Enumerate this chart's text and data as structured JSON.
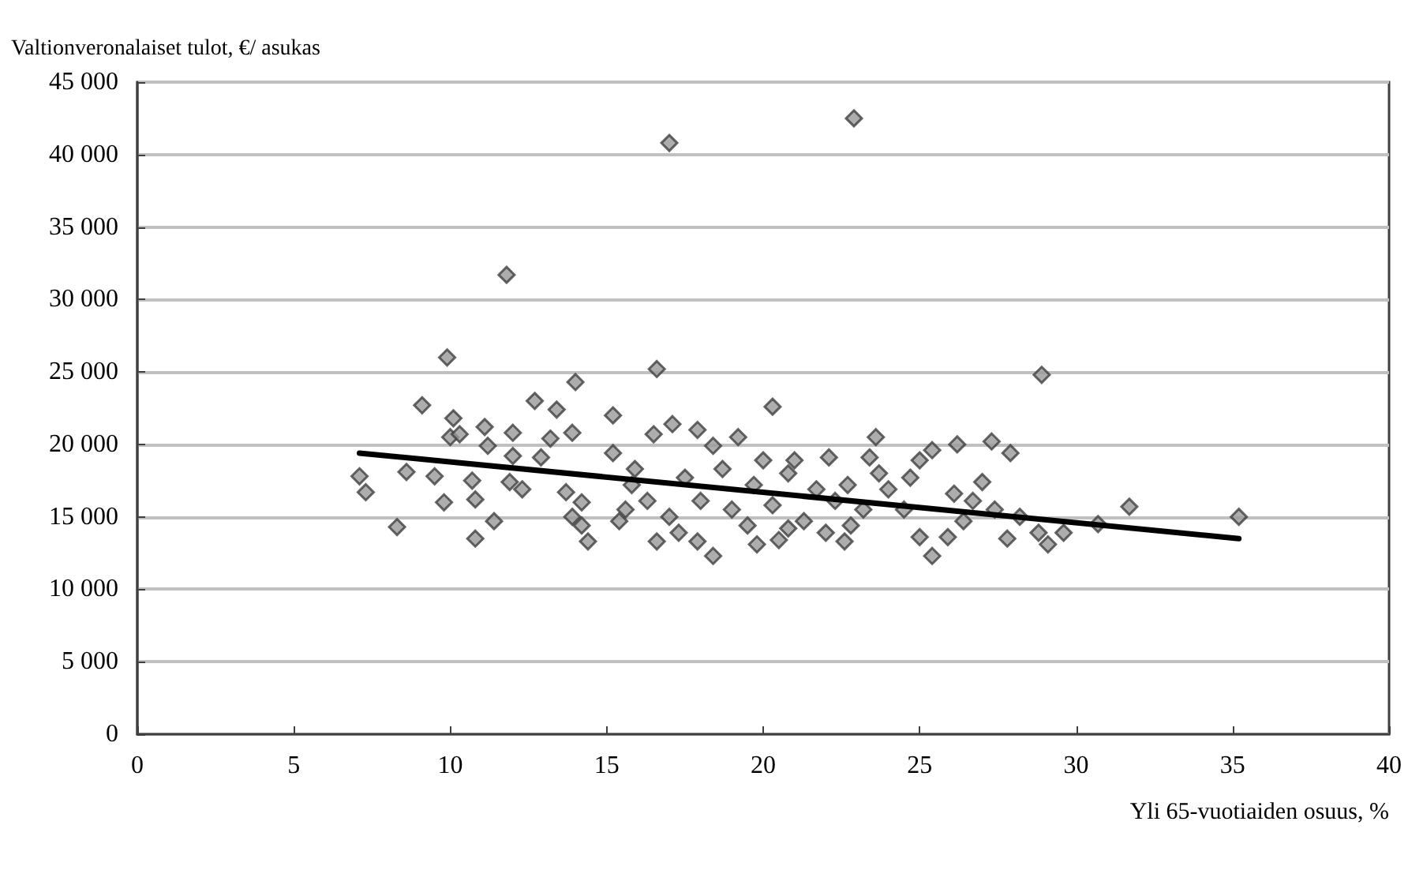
{
  "chart_data": {
    "type": "scatter",
    "xlabel": "Yli 65-vuotiaiden osuus, %",
    "ylabel": "Valtionveronalaiset tulot, €/ asukas",
    "xlim": [
      0,
      40
    ],
    "xticks": [
      0,
      5,
      10,
      15,
      20,
      25,
      30,
      35,
      40
    ],
    "ylim": [
      0,
      45000
    ],
    "yticks": [
      0,
      {
        "value": 5000,
        "label": "5 000"
      },
      {
        "value": 10000,
        "label": "10 000"
      },
      {
        "value": 15000,
        "label": "15 000"
      },
      {
        "value": 20000,
        "label": "20 000"
      },
      {
        "value": 25000,
        "label": "25 000"
      },
      {
        "value": 30000,
        "label": "30 000"
      },
      {
        "value": 35000,
        "label": "35 000"
      },
      {
        "value": 40000,
        "label": "40 000"
      },
      {
        "value": 45000,
        "label": "45 000"
      }
    ],
    "grid": "y",
    "series": [
      {
        "marker": "diamond",
        "color": "#999999",
        "x": [
          7.1,
          7.3,
          8.3,
          8.6,
          9.1,
          9.5,
          9.8,
          9.9,
          10.1,
          10.0,
          10.3,
          10.7,
          10.8,
          10.8,
          11.4,
          11.1,
          11.2,
          12.0,
          11.8,
          12.0,
          11.9,
          12.3,
          12.7,
          13.4,
          13.2,
          14.0,
          13.9,
          12.9,
          13.7,
          14.2,
          13.9,
          14.2,
          14.4,
          15.2,
          15.2,
          15.4,
          16.6,
          20.3,
          16.5,
          17.1,
          17.9,
          19.2,
          18.4,
          23.6,
          23.4,
          25.0,
          17.9,
          18.4,
          16.6,
          19.8,
          20.5,
          22.6,
          25.0,
          25.4,
          22.1,
          21.0,
          20.0,
          15.9,
          16.3,
          17.0,
          17.5,
          18.0,
          18.7,
          19.0,
          19.7,
          20.3,
          20.8,
          21.3,
          21.7,
          22.3,
          22.7,
          23.2,
          23.7,
          24.0,
          24.5,
          24.7,
          15.6,
          15.8,
          19.5,
          20.8,
          22.0,
          22.8,
          17.3,
          28.9,
          26.2,
          27.3,
          27.9,
          25.4,
          27.0,
          31.7,
          35.2,
          30.7,
          29.6,
          29.1,
          27.8,
          28.2,
          25.9,
          26.4,
          26.7,
          26.1,
          27.4,
          28.8,
          17.0,
          22.9
        ],
        "values": [
          17800,
          16700,
          14300,
          18100,
          22700,
          17800,
          16000,
          26000,
          21800,
          20500,
          20700,
          17500,
          16200,
          13500,
          14700,
          21200,
          19900,
          20800,
          31700,
          19200,
          17400,
          16900,
          23000,
          22400,
          20400,
          24300,
          20800,
          19100,
          16700,
          16000,
          15000,
          14400,
          13300,
          22000,
          19400,
          14700,
          25200,
          22600,
          20700,
          21400,
          21000,
          20500,
          19900,
          20500,
          19100,
          18900,
          13300,
          12300,
          13300,
          13100,
          13400,
          13300,
          13600,
          12300,
          19100,
          18900,
          18900,
          18300,
          16100,
          15000,
          17700,
          16100,
          18300,
          15500,
          17200,
          15800,
          18000,
          14700,
          16900,
          16100,
          17200,
          15500,
          18000,
          16900,
          15500,
          17700,
          15500,
          17200,
          14400,
          14200,
          13900,
          14400,
          13900,
          24800,
          20000,
          20200,
          19400,
          19600,
          17400,
          15700,
          15000,
          14500,
          13900,
          13100,
          13500,
          15000,
          13600,
          14700,
          16100,
          16600,
          15500,
          13900,
          40800,
          42500
        ]
      },
      {
        "type": "line",
        "marker": "none",
        "line_style": "solid",
        "color": "#000000",
        "x": [
          7.1,
          35.2
        ],
        "values": [
          19400,
          13500
        ]
      }
    ]
  }
}
